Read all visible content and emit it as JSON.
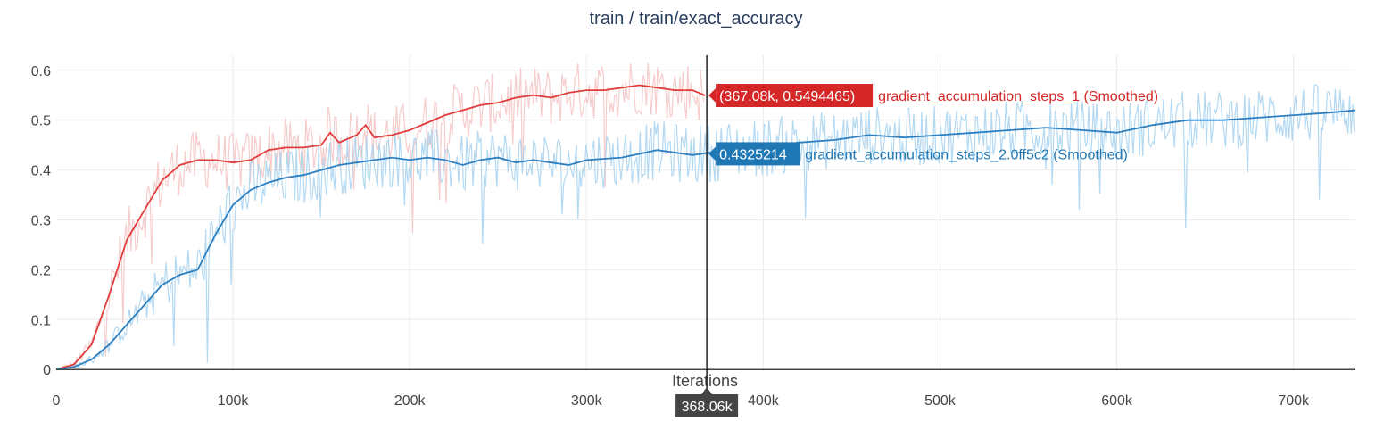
{
  "chart_data": {
    "type": "line",
    "title": "train / train/exact_accuracy",
    "xlabel": "Iterations",
    "ylabel": "",
    "xlim": [
      0,
      735000
    ],
    "ylim": [
      -0.005,
      0.63
    ],
    "xticks": [
      0,
      100000,
      200000,
      300000,
      400000,
      500000,
      600000,
      700000
    ],
    "xtick_labels": [
      "0",
      "100k",
      "200k",
      "300k",
      "400k",
      "500k",
      "600k",
      "700k"
    ],
    "yticks": [
      0,
      0.1,
      0.2,
      0.3,
      0.4,
      0.5,
      0.6
    ],
    "ytick_labels": [
      "0",
      "0.1",
      "0.2",
      "0.3",
      "0.4",
      "0.5",
      "0.6"
    ],
    "grid": true,
    "colors": {
      "series1_smooth": "#e03c3c",
      "series1_raw": "#f5c3c3",
      "series2_smooth": "#2e7fbf",
      "series2_raw": "#a6d2f0",
      "hover_bg1": "#d62728",
      "hover_bg2": "#1f77b4",
      "spike_label_bg": "#444444"
    },
    "series": [
      {
        "name": "gradient_accumulation_steps_1 (Smoothed)",
        "x": [
          0,
          10000,
          20000,
          30000,
          40000,
          50000,
          60000,
          70000,
          80000,
          90000,
          100000,
          110000,
          120000,
          130000,
          140000,
          150000,
          155000,
          160000,
          170000,
          175000,
          180000,
          190000,
          200000,
          210000,
          220000,
          230000,
          240000,
          250000,
          260000,
          270000,
          280000,
          290000,
          300000,
          310000,
          320000,
          330000,
          340000,
          350000,
          360000,
          367080
        ],
        "y": [
          0.0,
          0.01,
          0.05,
          0.15,
          0.26,
          0.32,
          0.38,
          0.41,
          0.42,
          0.42,
          0.415,
          0.42,
          0.44,
          0.445,
          0.445,
          0.45,
          0.475,
          0.455,
          0.47,
          0.49,
          0.465,
          0.47,
          0.48,
          0.495,
          0.51,
          0.52,
          0.53,
          0.535,
          0.545,
          0.55,
          0.545,
          0.555,
          0.56,
          0.56,
          0.565,
          0.57,
          0.565,
          0.56,
          0.56,
          0.5494465
        ]
      },
      {
        "name": "gradient_accumulation_steps_2.0ff5c2 (Smoothed)",
        "x": [
          0,
          10000,
          20000,
          30000,
          40000,
          50000,
          60000,
          70000,
          80000,
          90000,
          100000,
          110000,
          120000,
          130000,
          140000,
          150000,
          160000,
          170000,
          180000,
          190000,
          200000,
          210000,
          220000,
          230000,
          240000,
          250000,
          260000,
          270000,
          280000,
          290000,
          300000,
          320000,
          340000,
          360000,
          380000,
          400000,
          420000,
          440000,
          460000,
          480000,
          500000,
          520000,
          540000,
          560000,
          580000,
          600000,
          620000,
          640000,
          660000,
          680000,
          700000,
          720000,
          735000
        ],
        "y": [
          0.0,
          0.005,
          0.02,
          0.05,
          0.09,
          0.13,
          0.17,
          0.19,
          0.2,
          0.27,
          0.33,
          0.36,
          0.375,
          0.385,
          0.39,
          0.4,
          0.41,
          0.415,
          0.42,
          0.425,
          0.42,
          0.425,
          0.42,
          0.41,
          0.42,
          0.425,
          0.415,
          0.42,
          0.415,
          0.41,
          0.42,
          0.425,
          0.44,
          0.43,
          0.44,
          0.445,
          0.455,
          0.46,
          0.47,
          0.465,
          0.47,
          0.475,
          0.48,
          0.485,
          0.48,
          0.475,
          0.49,
          0.5,
          0.5,
          0.505,
          0.51,
          0.515,
          0.52
        ]
      }
    ],
    "hover": {
      "x_label": "368.06k",
      "x_value": 368060,
      "label1": "(367.08k, 0.5494465)",
      "y1": 0.5494465,
      "label2": "0.4325214",
      "y2": 0.4325214
    }
  }
}
